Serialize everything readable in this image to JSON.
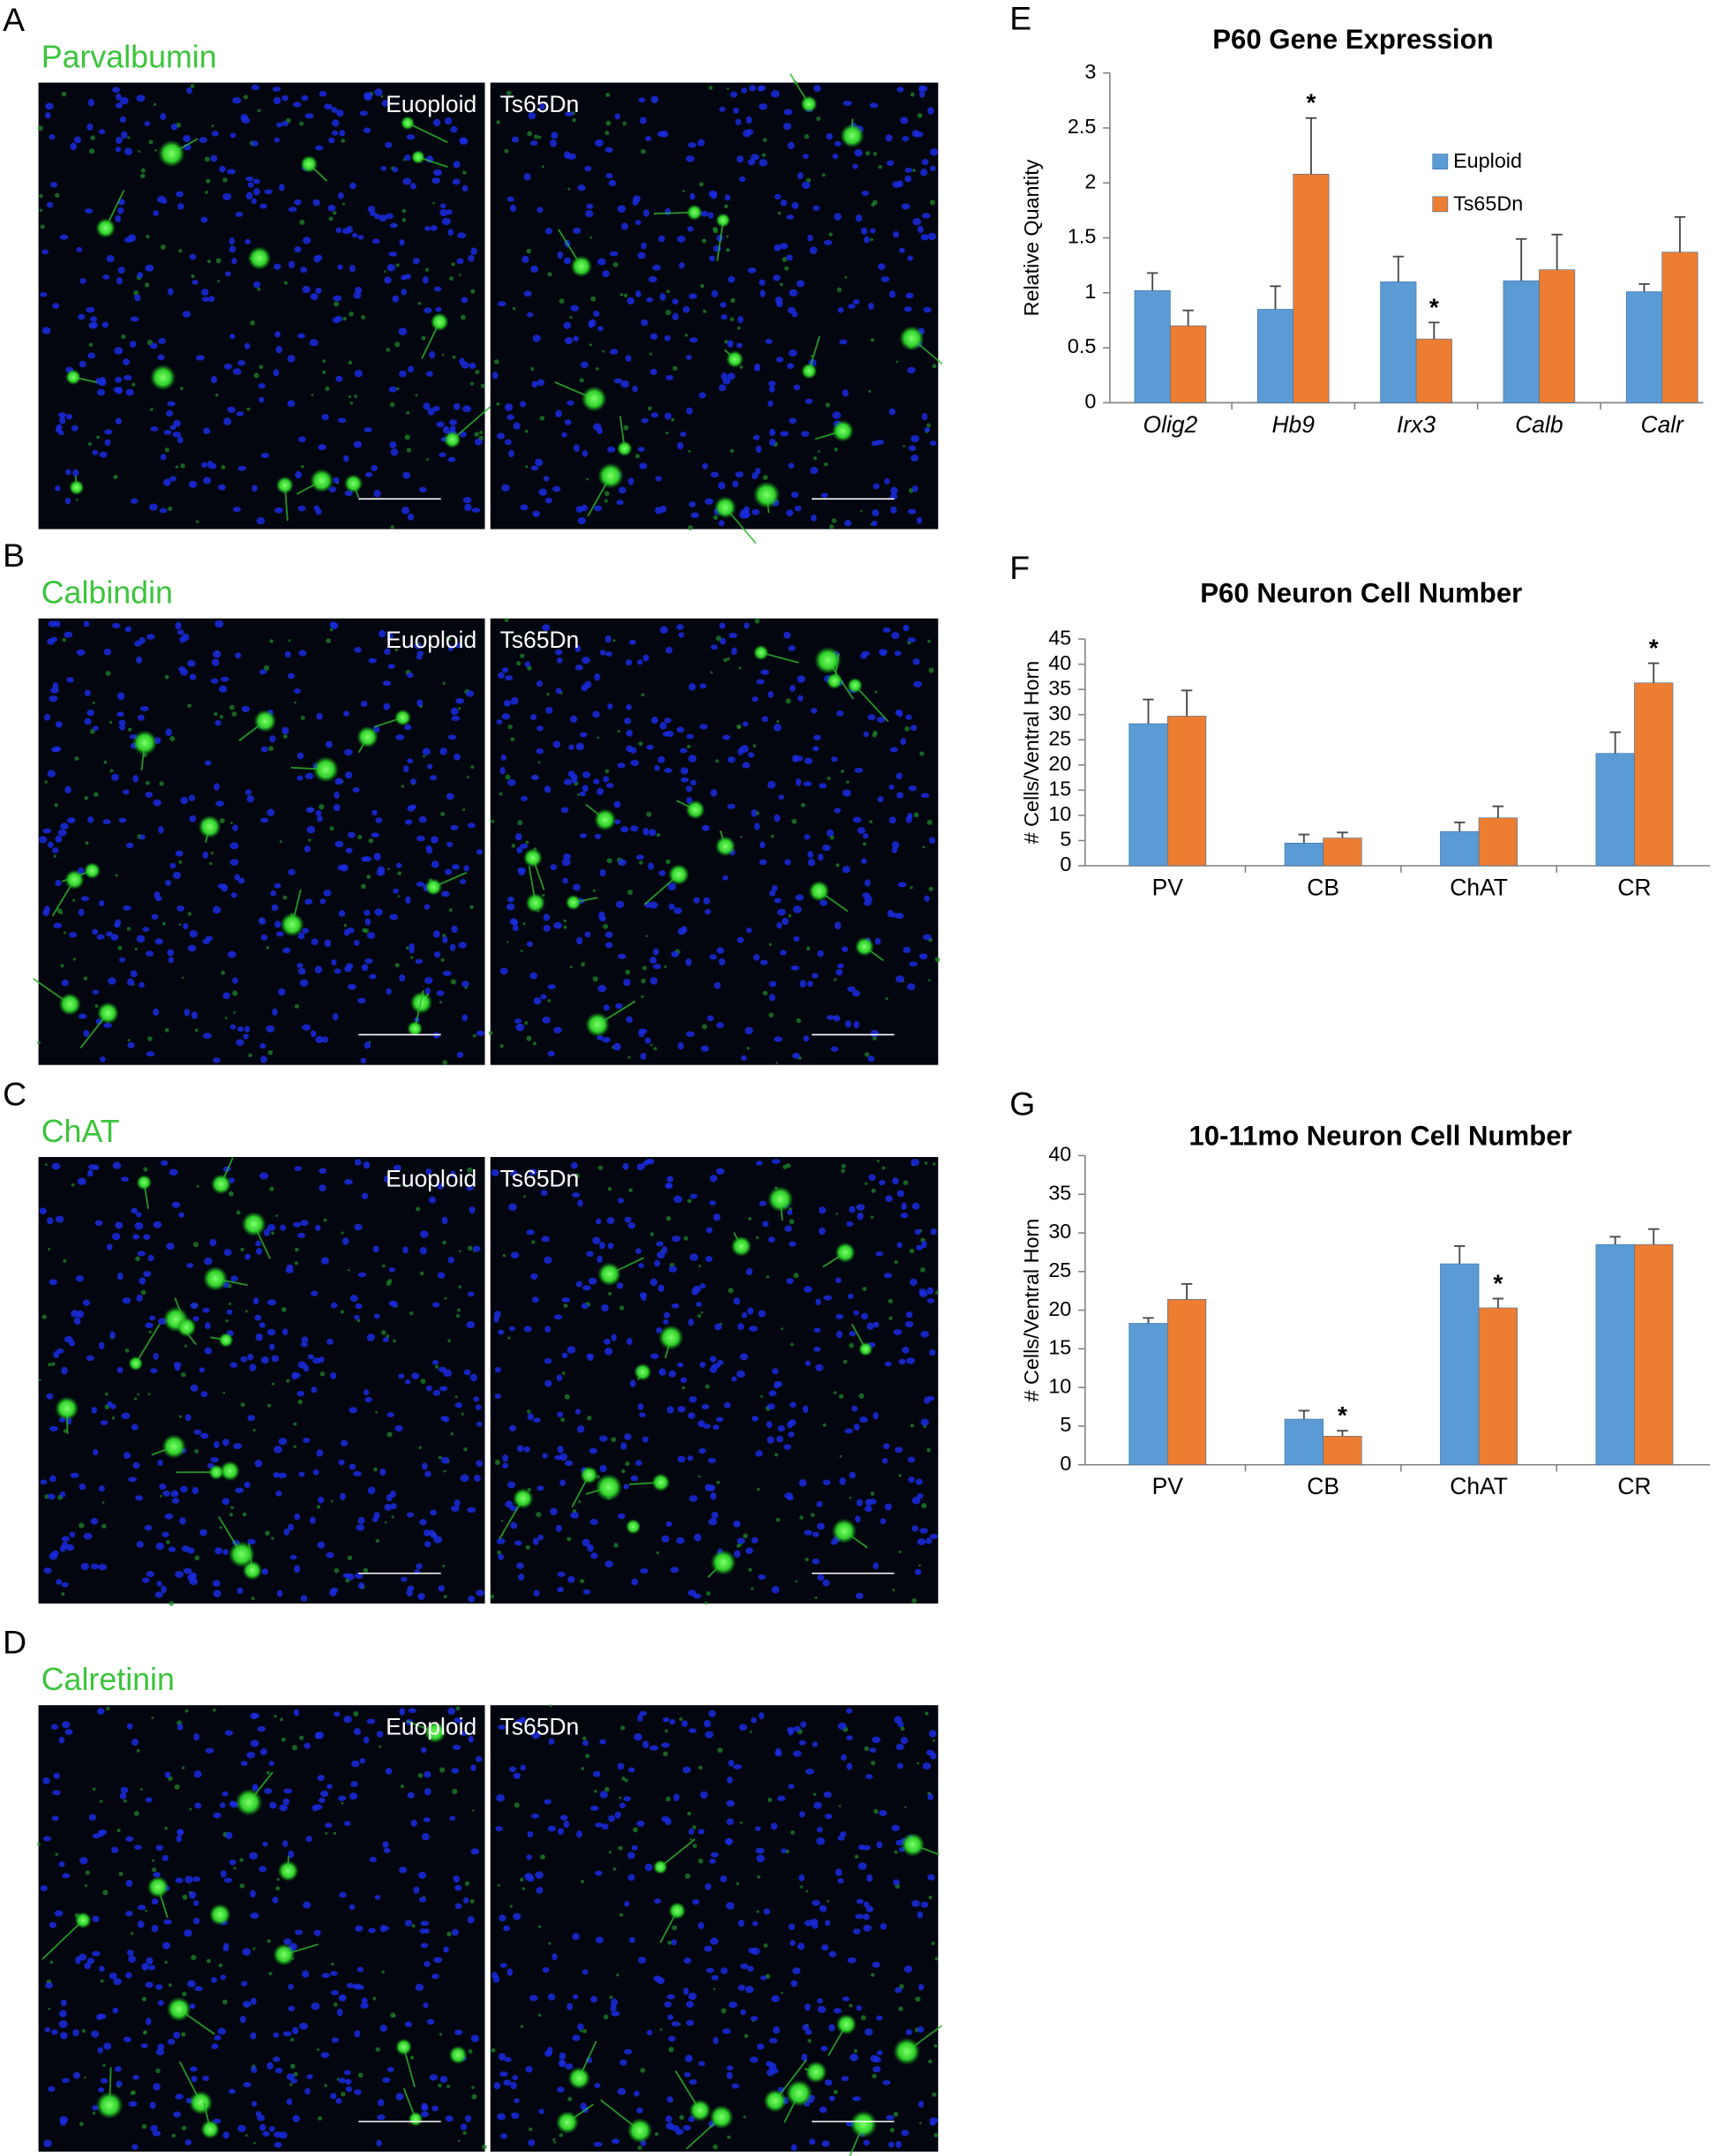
{
  "panels": [
    {
      "letter": "A",
      "title": "Parvalbumin",
      "labels": [
        "Euoploid",
        "Ts65Dn"
      ]
    },
    {
      "letter": "B",
      "title": "Calbindin",
      "labels": [
        "Euoploid",
        "Ts65Dn"
      ]
    },
    {
      "letter": "C",
      "title": "ChAT",
      "labels": [
        "Euoploid",
        "Ts65Dn"
      ]
    },
    {
      "letter": "D",
      "title": "Calretinin",
      "labels": [
        "Euoploid",
        "Ts65Dn"
      ]
    }
  ],
  "chart_data": [
    {
      "type": "bar",
      "letter": "E",
      "title": "P60 Gene Expression",
      "ylabel": "Relative Quantity",
      "categories": [
        "Olig2",
        "Hb9",
        "Irx3",
        "Calb",
        "Calr"
      ],
      "category_style": "italic",
      "series": [
        {
          "name": "Euploid",
          "color": "#5b9bd5",
          "values": [
            1.02,
            0.85,
            1.1,
            1.11,
            1.01
          ],
          "errors": [
            0.16,
            0.21,
            0.23,
            0.38,
            0.07
          ]
        },
        {
          "name": "Ts65Dn",
          "color": "#ed7d31",
          "values": [
            0.7,
            2.08,
            0.58,
            1.21,
            1.37
          ],
          "errors": [
            0.14,
            0.51,
            0.15,
            0.32,
            0.32
          ]
        }
      ],
      "ylim": [
        0,
        3
      ],
      "yticks": [
        0,
        0.5,
        1,
        1.5,
        2,
        2.5,
        3
      ],
      "legend": "right",
      "annotations": [
        {
          "text": "*",
          "x": "Hb9"
        },
        {
          "text": "*",
          "x": "Irx3"
        }
      ]
    },
    {
      "type": "bar",
      "letter": "F",
      "title": "P60 Neuron Cell Number",
      "ylabel": "# Cells/Ventral Horn",
      "categories": [
        "PV",
        "CB",
        "ChAT",
        "CR"
      ],
      "series": [
        {
          "color": "#5b9bd5",
          "values": [
            28.2,
            4.5,
            6.8,
            22.3
          ],
          "errors": [
            4.8,
            1.7,
            1.8,
            4.2
          ]
        },
        {
          "color": "#ed7d31",
          "values": [
            29.7,
            5.5,
            9.5,
            36.3
          ],
          "errors": [
            5.1,
            1.1,
            2.3,
            3.9
          ]
        }
      ],
      "ylim": [
        0,
        45
      ],
      "yticks": [
        0,
        5,
        10,
        15,
        20,
        25,
        30,
        35,
        40,
        45
      ],
      "annotations": [
        {
          "text": "*",
          "x": "CR"
        }
      ]
    },
    {
      "type": "bar",
      "letter": "G",
      "title": "10-11mo Neuron Cell Number",
      "ylabel": "# Cells/Ventral Horn",
      "categories": [
        "PV",
        "CB",
        "ChAT",
        "CR"
      ],
      "series": [
        {
          "color": "#5b9bd5",
          "values": [
            18.3,
            5.9,
            26.0,
            28.5
          ],
          "errors": [
            0.7,
            1.1,
            2.3,
            1.0
          ]
        },
        {
          "color": "#ed7d31",
          "values": [
            21.4,
            3.7,
            20.3,
            28.5
          ],
          "errors": [
            2.0,
            0.7,
            1.2,
            2.0
          ]
        }
      ],
      "ylim": [
        0,
        40
      ],
      "yticks": [
        0,
        5,
        10,
        15,
        20,
        25,
        30,
        35,
        40
      ],
      "annotations": [
        {
          "text": "*",
          "x": "CB"
        },
        {
          "text": "*",
          "x": "ChAT"
        }
      ]
    }
  ]
}
